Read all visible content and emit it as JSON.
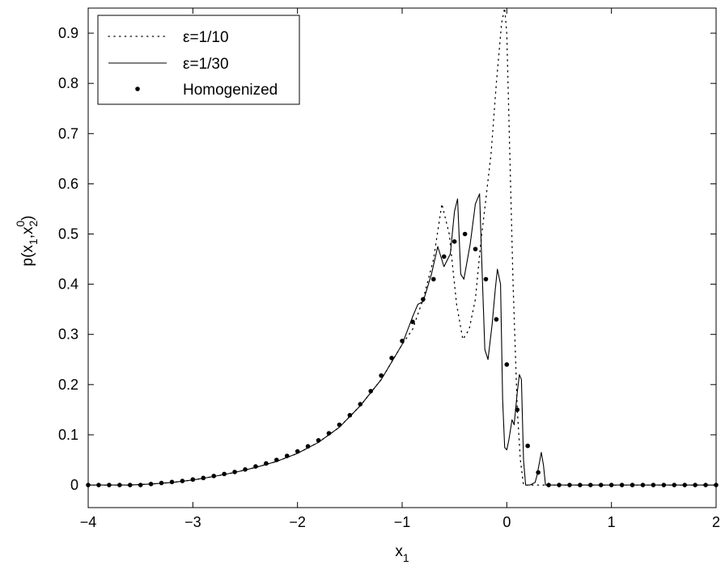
{
  "chart_data": {
    "type": "line",
    "xlabel": "x",
    "xlabel_sub": "1",
    "ylabel_parts": [
      "p(x",
      "1",
      ",x",
      "2",
      "0",
      ")"
    ],
    "xlim": [
      -4,
      2
    ],
    "ylim": [
      -0.045,
      0.95
    ],
    "x_ticks": [
      -4,
      -3,
      -2,
      -1,
      0,
      1,
      2
    ],
    "y_ticks": [
      0,
      0.1,
      0.2,
      0.3,
      0.4,
      0.5,
      0.6,
      0.7,
      0.8,
      0.9
    ],
    "x_tick_labels": [
      "−4",
      "−3",
      "−2",
      "−1",
      "0",
      "1",
      "2"
    ],
    "y_tick_labels": [
      "0",
      "0.1",
      "0.2",
      "0.3",
      "0.4",
      "0.5",
      "0.6",
      "0.7",
      "0.8",
      "0.9"
    ],
    "legend_position": "top-left",
    "series": [
      {
        "name": "ε=1/10",
        "style": "dotted",
        "x": [
          -4,
          -3.6,
          -3.4,
          -3.2,
          -3.0,
          -2.8,
          -2.6,
          -2.4,
          -2.2,
          -2.0,
          -1.8,
          -1.6,
          -1.4,
          -1.2,
          -1.0,
          -0.9,
          -0.8,
          -0.7,
          -0.62,
          -0.55,
          -0.48,
          -0.42,
          -0.36,
          -0.3,
          -0.25,
          -0.2,
          -0.15,
          -0.1,
          -0.05,
          -0.02,
          0.0,
          0.03,
          0.06,
          0.1,
          0.13,
          0.16,
          2.0
        ],
        "y": [
          0,
          0,
          0.002,
          0.005,
          0.01,
          0.017,
          0.025,
          0.035,
          0.047,
          0.063,
          0.085,
          0.115,
          0.158,
          0.21,
          0.28,
          0.31,
          0.37,
          0.45,
          0.56,
          0.5,
          0.36,
          0.29,
          0.31,
          0.37,
          0.48,
          0.57,
          0.66,
          0.8,
          0.92,
          0.95,
          0.9,
          0.65,
          0.4,
          0.15,
          0.05,
          0.0,
          0.0
        ]
      },
      {
        "name": "ε=1/30",
        "style": "solid",
        "x": [
          -4,
          -3.6,
          -3.4,
          -3.2,
          -3.0,
          -2.8,
          -2.6,
          -2.4,
          -2.2,
          -2.0,
          -1.8,
          -1.6,
          -1.4,
          -1.2,
          -1.0,
          -0.9,
          -0.85,
          -0.8,
          -0.72,
          -0.66,
          -0.6,
          -0.54,
          -0.5,
          -0.47,
          -0.44,
          -0.41,
          -0.35,
          -0.3,
          -0.26,
          -0.24,
          -0.21,
          -0.18,
          -0.14,
          -0.11,
          -0.09,
          -0.06,
          -0.04,
          -0.02,
          0.0,
          0.02,
          0.05,
          0.07,
          0.1,
          0.12,
          0.14,
          0.16,
          0.18,
          0.22,
          0.27,
          0.29,
          0.33,
          0.35,
          0.37,
          2.0
        ],
        "y": [
          0,
          0,
          0.002,
          0.005,
          0.01,
          0.017,
          0.025,
          0.035,
          0.047,
          0.063,
          0.085,
          0.115,
          0.158,
          0.21,
          0.28,
          0.335,
          0.36,
          0.365,
          0.42,
          0.475,
          0.435,
          0.46,
          0.545,
          0.57,
          0.42,
          0.41,
          0.48,
          0.56,
          0.58,
          0.45,
          0.27,
          0.25,
          0.32,
          0.39,
          0.43,
          0.4,
          0.17,
          0.075,
          0.07,
          0.09,
          0.13,
          0.12,
          0.185,
          0.22,
          0.21,
          0.05,
          0.0,
          0.0,
          0.005,
          0.02,
          0.065,
          0.04,
          0.0,
          0.0
        ]
      },
      {
        "name": "Homogenized",
        "style": "points",
        "x": [
          -4.0,
          -3.9,
          -3.8,
          -3.7,
          -3.6,
          -3.5,
          -3.4,
          -3.3,
          -3.2,
          -3.1,
          -3.0,
          -2.9,
          -2.8,
          -2.7,
          -2.6,
          -2.5,
          -2.4,
          -2.3,
          -2.2,
          -2.1,
          -2.0,
          -1.9,
          -1.8,
          -1.7,
          -1.6,
          -1.5,
          -1.4,
          -1.3,
          -1.2,
          -1.1,
          -1.0,
          -0.9,
          -0.8,
          -0.7,
          -0.6,
          -0.5,
          -0.4,
          -0.3,
          -0.2,
          -0.1,
          0.0,
          0.1,
          0.2,
          0.3,
          0.4,
          0.5,
          0.6,
          0.7,
          0.8,
          0.9,
          1.0,
          1.1,
          1.2,
          1.3,
          1.4,
          1.5,
          1.6,
          1.7,
          1.8,
          1.9,
          2.0
        ],
        "y": [
          0,
          0,
          0,
          0,
          0,
          0,
          0.002,
          0.004,
          0.006,
          0.008,
          0.011,
          0.014,
          0.018,
          0.022,
          0.026,
          0.031,
          0.037,
          0.043,
          0.05,
          0.058,
          0.067,
          0.077,
          0.089,
          0.103,
          0.12,
          0.139,
          0.161,
          0.187,
          0.218,
          0.253,
          0.287,
          0.325,
          0.37,
          0.41,
          0.455,
          0.485,
          0.5,
          0.47,
          0.41,
          0.33,
          0.24,
          0.15,
          0.078,
          0.025,
          0,
          0,
          0,
          0,
          0,
          0,
          0,
          0,
          0,
          0,
          0,
          0,
          0,
          0,
          0,
          0,
          0
        ]
      }
    ]
  }
}
